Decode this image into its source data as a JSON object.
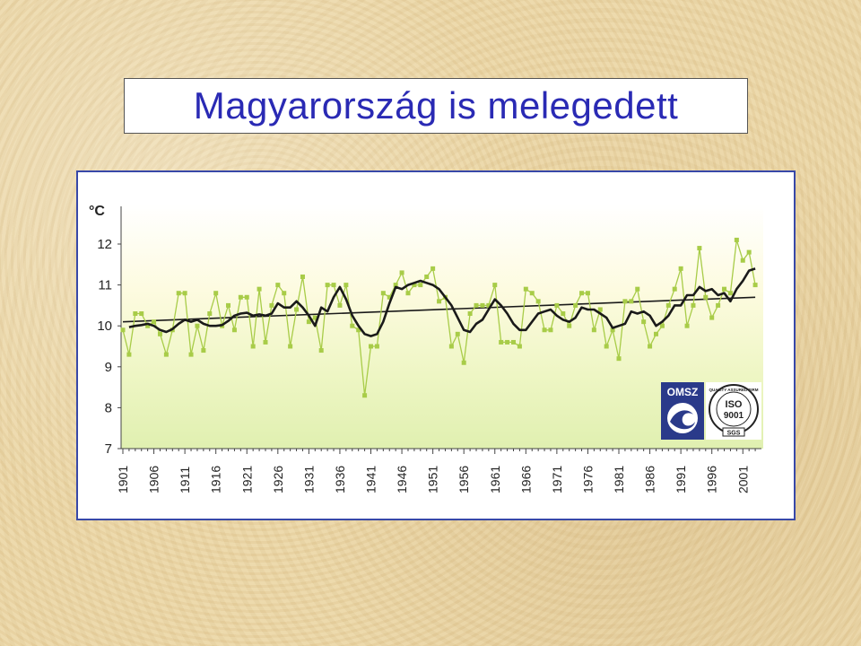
{
  "title": "Magyarország is melegedett",
  "chart_data": {
    "type": "line",
    "unit_label": "°C",
    "ylim": [
      7,
      12.5
    ],
    "yticks": [
      7,
      8,
      9,
      10,
      11,
      12
    ],
    "xlim": [
      1901,
      2004
    ],
    "xticks": [
      1901,
      1906,
      1911,
      1916,
      1921,
      1926,
      1931,
      1936,
      1941,
      1946,
      1951,
      1956,
      1961,
      1966,
      1971,
      1976,
      1981,
      1986,
      1991,
      1996,
      2001
    ],
    "grid": false,
    "series": [
      {
        "style": "annual",
        "color": "#a8cc48",
        "x": [
          1901,
          1902,
          1903,
          1904,
          1905,
          1906,
          1907,
          1908,
          1909,
          1910,
          1911,
          1912,
          1913,
          1914,
          1915,
          1916,
          1917,
          1918,
          1919,
          1920,
          1921,
          1922,
          1923,
          1924,
          1925,
          1926,
          1927,
          1928,
          1929,
          1930,
          1931,
          1932,
          1933,
          1934,
          1935,
          1936,
          1937,
          1938,
          1939,
          1940,
          1941,
          1942,
          1943,
          1944,
          1945,
          1946,
          1947,
          1948,
          1949,
          1950,
          1951,
          1952,
          1953,
          1954,
          1955,
          1956,
          1957,
          1958,
          1959,
          1960,
          1961,
          1962,
          1963,
          1964,
          1965,
          1966,
          1967,
          1968,
          1969,
          1970,
          1971,
          1972,
          1973,
          1974,
          1975,
          1976,
          1977,
          1978,
          1979,
          1980,
          1981,
          1982,
          1983,
          1984,
          1985,
          1986,
          1987,
          1988,
          1989,
          1990,
          1991,
          1992,
          1993,
          1994,
          1995,
          1996,
          1997,
          1998,
          1999,
          2000,
          2001,
          2002,
          2003
        ],
        "values": [
          9.9,
          9.3,
          10.3,
          10.3,
          10.0,
          10.1,
          9.8,
          9.3,
          9.9,
          10.8,
          10.8,
          9.3,
          10.0,
          9.4,
          10.3,
          10.8,
          10.0,
          10.5,
          9.9,
          10.7,
          10.7,
          9.5,
          10.9,
          9.6,
          10.5,
          11.0,
          10.8,
          9.5,
          10.4,
          11.2,
          10.1,
          10.2,
          9.4,
          11.0,
          11.0,
          10.5,
          11.0,
          10.0,
          9.9,
          8.3,
          9.5,
          9.5,
          10.8,
          10.7,
          11.0,
          11.3,
          10.8,
          11.0,
          11.0,
          11.2,
          11.4,
          10.6,
          10.7,
          9.5,
          9.8,
          9.1,
          10.3,
          10.5,
          10.5,
          10.5,
          11.0,
          9.6,
          9.6,
          9.6,
          9.5,
          10.9,
          10.8,
          10.6,
          9.9,
          9.9,
          10.5,
          10.3,
          10.0,
          10.5,
          10.8,
          10.8,
          9.9,
          10.4,
          9.5,
          9.9,
          9.2,
          10.6,
          10.6,
          10.9,
          10.1,
          9.5,
          9.8,
          10.0,
          10.5,
          10.9,
          11.4,
          10.0,
          10.5,
          11.9,
          10.7,
          10.2,
          10.5,
          10.9,
          10.8,
          12.1,
          11.6,
          11.8,
          11.0
        ]
      },
      {
        "style": "moving-average",
        "color": "#1a1a1a",
        "x": [
          1902,
          1903,
          1904,
          1905,
          1906,
          1907,
          1908,
          1909,
          1910,
          1911,
          1912,
          1913,
          1914,
          1915,
          1916,
          1917,
          1918,
          1919,
          1920,
          1921,
          1922,
          1923,
          1924,
          1925,
          1926,
          1927,
          1928,
          1929,
          1930,
          1931,
          1932,
          1933,
          1934,
          1935,
          1936,
          1937,
          1938,
          1939,
          1940,
          1941,
          1942,
          1943,
          1944,
          1945,
          1946,
          1947,
          1948,
          1949,
          1950,
          1951,
          1952,
          1953,
          1954,
          1955,
          1956,
          1957,
          1958,
          1959,
          1960,
          1961,
          1962,
          1963,
          1964,
          1965,
          1966,
          1967,
          1968,
          1969,
          1970,
          1971,
          1972,
          1973,
          1974,
          1975,
          1976,
          1977,
          1978,
          1979,
          1980,
          1981,
          1982,
          1983,
          1984,
          1985,
          1986,
          1987,
          1988,
          1989,
          1990,
          1991,
          1992,
          1993,
          1994,
          1995,
          1996,
          1997,
          1998,
          1999,
          2000,
          2001,
          2002,
          2003
        ],
        "values": [
          9.97,
          10.0,
          10.02,
          10.05,
          10.0,
          9.9,
          9.85,
          9.92,
          10.05,
          10.15,
          10.1,
          10.15,
          10.05,
          10.0,
          10.0,
          10.02,
          10.12,
          10.25,
          10.3,
          10.32,
          10.25,
          10.28,
          10.25,
          10.3,
          10.55,
          10.45,
          10.45,
          10.6,
          10.45,
          10.25,
          10.0,
          10.45,
          10.35,
          10.7,
          10.95,
          10.65,
          10.25,
          10.0,
          9.8,
          9.75,
          9.8,
          10.1,
          10.55,
          10.95,
          10.9,
          11.0,
          11.05,
          11.1,
          11.05,
          11.0,
          10.9,
          10.7,
          10.5,
          10.2,
          9.9,
          9.85,
          10.05,
          10.15,
          10.4,
          10.65,
          10.5,
          10.3,
          10.05,
          9.9,
          9.9,
          10.1,
          10.3,
          10.35,
          10.4,
          10.25,
          10.15,
          10.1,
          10.2,
          10.45,
          10.4,
          10.4,
          10.3,
          10.2,
          9.95,
          10.0,
          10.05,
          10.35,
          10.3,
          10.35,
          10.25,
          10.0,
          10.1,
          10.25,
          10.5,
          10.5,
          10.75,
          10.75,
          10.95,
          10.85,
          10.9,
          10.75,
          10.8,
          10.6,
          10.9,
          11.1,
          11.35,
          11.4
        ]
      },
      {
        "style": "trend",
        "color": "#1a1a1a",
        "x": [
          1901,
          2003
        ],
        "values": [
          10.1,
          10.7
        ]
      }
    ]
  },
  "logos": {
    "omsz_text": "OMSZ",
    "iso_text": "ISO",
    "iso_number": "9001",
    "iso_ring_text": "QUALITY ASSURED FIRM",
    "iso_badge_text": "SGS"
  },
  "colors": {
    "title_text": "#2a2ab4",
    "frame_border": "#3848a8",
    "annual_line": "#a8cc48",
    "smoothed_line": "#1a1a1a",
    "omsz_bg": "#2a3a8a"
  }
}
